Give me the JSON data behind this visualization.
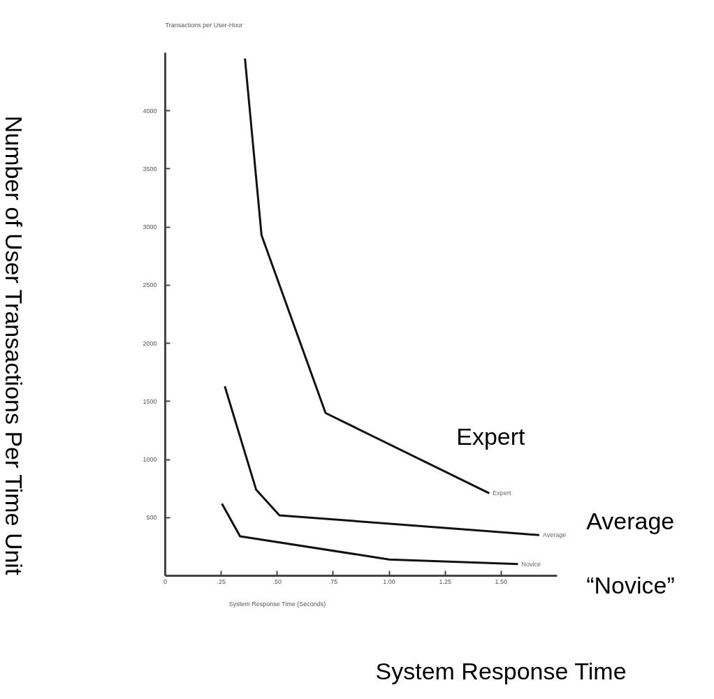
{
  "chart_data": {
    "type": "line",
    "xlabel": "System Response Time (Seconds)",
    "ylabel": "Transactions per User-Hour",
    "xlim": [
      0,
      1.75
    ],
    "ylim": [
      0,
      4500
    ],
    "xticks": [
      0,
      {
        "value": 0.25,
        "label": ".25"
      },
      {
        "value": 0.5,
        "label": ".50"
      },
      {
        "value": 0.75,
        "label": ".75"
      },
      {
        "value": 1.0,
        "label": "1.00"
      },
      {
        "value": 1.25,
        "label": "1.25"
      },
      {
        "value": 1.5,
        "label": "1.50"
      }
    ],
    "yticks": [
      500,
      1000,
      1500,
      2000,
      2500,
      3000,
      3500,
      4000
    ],
    "grid": false,
    "marker": "none",
    "line_style": "solid",
    "series": [
      {
        "name": "Expert",
        "color": "#111111",
        "x": [
          0.356,
          0.43,
          0.716,
          1.447
        ],
        "values": [
          4450,
          2930,
          1400,
          710
        ]
      },
      {
        "name": "Average",
        "color": "#111111",
        "x": [
          0.266,
          0.406,
          0.51,
          1.67
        ],
        "values": [
          1630,
          740,
          520,
          350
        ]
      },
      {
        "name": "Novice",
        "color": "#111111",
        "x": [
          0.253,
          0.334,
          1.0,
          1.575
        ],
        "values": [
          620,
          340,
          140,
          100
        ]
      }
    ],
    "annotations": [
      "Number of User  Transactions Per Time Unit",
      "System Response Time",
      "Expert",
      "Average",
      "“Novice”"
    ]
  }
}
